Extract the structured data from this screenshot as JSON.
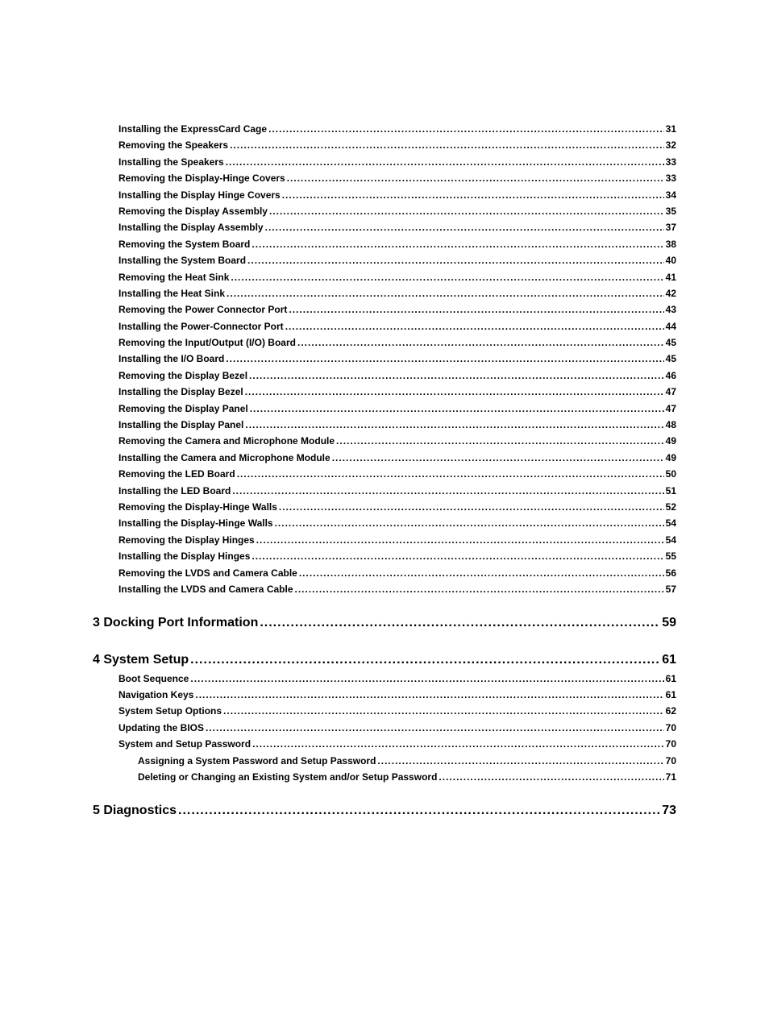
{
  "toc": [
    {
      "level": 2,
      "label": "Installing the ExpressCard Cage",
      "page": "31"
    },
    {
      "level": 2,
      "label": "Removing the Speakers",
      "page": "32"
    },
    {
      "level": 2,
      "label": "Installing the Speakers",
      "page": "33"
    },
    {
      "level": 2,
      "label": "Removing the Display-Hinge Covers",
      "page": "33"
    },
    {
      "level": 2,
      "label": "Installing the Display Hinge Covers",
      "page": "34"
    },
    {
      "level": 2,
      "label": "Removing the Display Assembly",
      "page": "35"
    },
    {
      "level": 2,
      "label": "Installing the Display Assembly",
      "page": "37"
    },
    {
      "level": 2,
      "label": "Removing the System Board",
      "page": "38"
    },
    {
      "level": 2,
      "label": "Installing the System Board",
      "page": "40"
    },
    {
      "level": 2,
      "label": "Removing the Heat Sink",
      "page": "41"
    },
    {
      "level": 2,
      "label": "Installing the Heat Sink",
      "page": "42"
    },
    {
      "level": 2,
      "label": "Removing the Power Connector Port",
      "page": "43"
    },
    {
      "level": 2,
      "label": "Installing the Power-Connector Port",
      "page": "44"
    },
    {
      "level": 2,
      "label": "Removing the Input/Output (I/O) Board",
      "page": "45"
    },
    {
      "level": 2,
      "label": "Installing the I/O Board",
      "page": "45"
    },
    {
      "level": 2,
      "label": "Removing the Display Bezel",
      "page": "46"
    },
    {
      "level": 2,
      "label": "Installing the Display Bezel",
      "page": "47"
    },
    {
      "level": 2,
      "label": "Removing the Display Panel",
      "page": "47"
    },
    {
      "level": 2,
      "label": "Installing the Display Panel",
      "page": "48"
    },
    {
      "level": 2,
      "label": "Removing the Camera and Microphone Module",
      "page": "49"
    },
    {
      "level": 2,
      "label": "Installing the Camera and Microphone Module",
      "page": "49"
    },
    {
      "level": 2,
      "label": "Removing the LED Board",
      "page": "50"
    },
    {
      "level": 2,
      "label": "Installing the LED Board",
      "page": "51"
    },
    {
      "level": 2,
      "label": "Removing the Display-Hinge Walls",
      "page": "52"
    },
    {
      "level": 2,
      "label": "Installing the Display-Hinge Walls",
      "page": "54"
    },
    {
      "level": 2,
      "label": "Removing the Display Hinges",
      "page": "54"
    },
    {
      "level": 2,
      "label": "Installing the Display Hinges",
      "page": "55"
    },
    {
      "level": 2,
      "label": "Removing the LVDS and Camera Cable",
      "page": "56"
    },
    {
      "level": 2,
      "label": "Installing the LVDS and Camera Cable",
      "page": "57"
    },
    {
      "level": 1,
      "label": "3 Docking Port Information",
      "page": "59"
    },
    {
      "level": 1,
      "label": "4 System Setup",
      "page": " 61"
    },
    {
      "level": 2,
      "label": "Boot Sequence",
      "page": "61"
    },
    {
      "level": 2,
      "label": "Navigation Keys",
      "page": "61"
    },
    {
      "level": 2,
      "label": "System Setup Options",
      "page": "62"
    },
    {
      "level": 2,
      "label": "Updating the BIOS ",
      "page": "70"
    },
    {
      "level": 2,
      "label": "System and Setup Password",
      "page": "70"
    },
    {
      "level": 3,
      "label": "Assigning a System Password and Setup Password",
      "page": "70"
    },
    {
      "level": 3,
      "label": "Deleting or Changing an Existing System and/or Setup Password",
      "page": "71"
    },
    {
      "level": 1,
      "label": "5 Diagnostics",
      "page": "73"
    }
  ]
}
